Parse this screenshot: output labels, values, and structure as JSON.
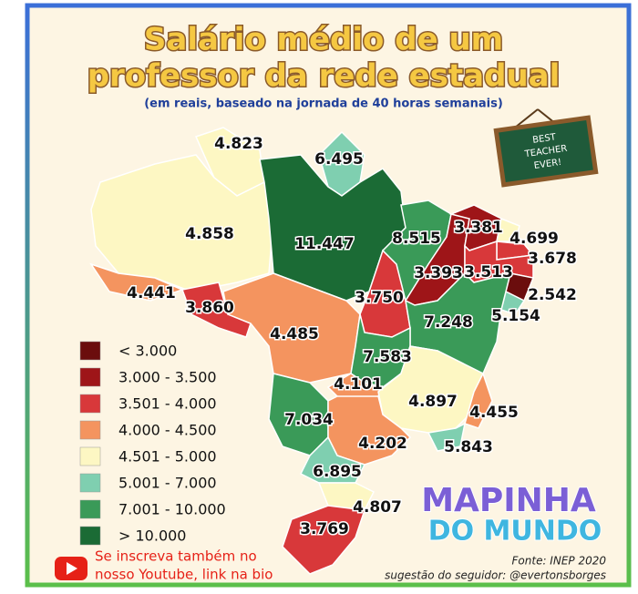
{
  "header": {
    "title_lines": [
      "Salário médio de um",
      "professor da rede estadual"
    ],
    "subtitle": "(em reais, baseado na jornada de 40 horas semanais)",
    "sign": [
      "BEST",
      "TEACHER",
      "EVER!"
    ]
  },
  "legend": [
    {
      "label": "< 3.000",
      "color": "#6b0d0d"
    },
    {
      "label": "3.000 - 3.500",
      "color": "#9e1518"
    },
    {
      "label": "3.501 - 4.000",
      "color": "#d8383a"
    },
    {
      "label": "4.000 - 4.500",
      "color": "#f4945f"
    },
    {
      "label": "4.501 - 5.000",
      "color": "#fdf7c3"
    },
    {
      "label": "5.001 - 7.000",
      "color": "#7fcfb0"
    },
    {
      "label": "7.001 - 10.000",
      "color": "#3a9a58"
    },
    {
      "label": "> 10.000",
      "color": "#1b6b35"
    }
  ],
  "regions": [
    {
      "value": "4.823",
      "color": "#fdf7c3"
    },
    {
      "value": "6.495",
      "color": "#7fcfb0"
    },
    {
      "value": "4.858",
      "color": "#fdf7c3"
    },
    {
      "value": "11.447",
      "color": "#1b6b35"
    },
    {
      "value": "4.441",
      "color": "#f4945f"
    },
    {
      "value": "3.860",
      "color": "#d8383a"
    },
    {
      "value": "4.485",
      "color": "#f4945f"
    },
    {
      "value": "3.750",
      "color": "#d8383a"
    },
    {
      "value": "8.515",
      "color": "#3a9a58"
    },
    {
      "value": "3.393",
      "color": "#9e1518"
    },
    {
      "value": "3.381",
      "color": "#9e1518"
    },
    {
      "value": "4.699",
      "color": "#fdf7c3"
    },
    {
      "value": "3.678",
      "color": "#d8383a"
    },
    {
      "value": "3.513",
      "color": "#d8383a"
    },
    {
      "value": "2.542",
      "color": "#6b0d0d"
    },
    {
      "value": "5.154",
      "color": "#7fcfb0"
    },
    {
      "value": "7.248",
      "color": "#3a9a58"
    },
    {
      "value": "7.583",
      "color": "#3a9a58"
    },
    {
      "value": "4.101",
      "color": "#f4945f"
    },
    {
      "value": "7.034",
      "color": "#3a9a58"
    },
    {
      "value": "4.897",
      "color": "#fdf7c3"
    },
    {
      "value": "4.455",
      "color": "#f4945f"
    },
    {
      "value": "4.202",
      "color": "#f4945f"
    },
    {
      "value": "5.843",
      "color": "#7fcfb0"
    },
    {
      "value": "6.895",
      "color": "#7fcfb0"
    },
    {
      "value": "4.807",
      "color": "#fdf7c3"
    },
    {
      "value": "3.769",
      "color": "#d8383a"
    }
  ],
  "footer": {
    "youtube": [
      "Se inscreva também no",
      "nosso Youtube, link na bio"
    ],
    "logo": [
      "MAPINHA",
      "DO MUNDO"
    ],
    "source": "Fonte: INEP 2020",
    "suggestion": "sugestão do seguidor: @evertonsborges"
  }
}
